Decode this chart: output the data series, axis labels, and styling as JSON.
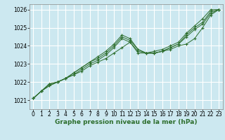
{
  "title": "Graphe pression niveau de la mer (hPa)",
  "bg_color": "#cce8f0",
  "grid_color": "#ffffff",
  "line_color": "#2d6e2d",
  "xlim": [
    -0.5,
    23.5
  ],
  "ylim": [
    1020.5,
    1026.3
  ],
  "yticks": [
    1021,
    1022,
    1023,
    1024,
    1025,
    1026
  ],
  "xticks": [
    0,
    1,
    2,
    3,
    4,
    5,
    6,
    7,
    8,
    9,
    10,
    11,
    12,
    13,
    14,
    15,
    16,
    17,
    18,
    19,
    20,
    21,
    22,
    23
  ],
  "series": [
    [
      1021.1,
      1021.5,
      1021.8,
      1022.0,
      1022.2,
      1022.4,
      1022.6,
      1022.9,
      1023.1,
      1023.3,
      1023.6,
      1023.9,
      1024.2,
      1023.6,
      1023.6,
      1023.6,
      1023.7,
      1023.8,
      1024.0,
      1024.1,
      1024.4,
      1025.0,
      1025.7,
      1026.0
    ],
    [
      1021.1,
      1021.5,
      1021.8,
      1022.0,
      1022.2,
      1022.4,
      1022.7,
      1023.0,
      1023.2,
      1023.5,
      1023.9,
      1024.4,
      1024.2,
      1023.7,
      1023.6,
      1023.6,
      1023.7,
      1023.9,
      1024.1,
      1024.5,
      1024.9,
      1025.2,
      1025.8,
      1026.0
    ],
    [
      1021.1,
      1021.5,
      1021.9,
      1022.0,
      1022.2,
      1022.5,
      1022.8,
      1023.1,
      1023.3,
      1023.6,
      1024.0,
      1024.5,
      1024.3,
      1023.8,
      1023.6,
      1023.6,
      1023.7,
      1023.9,
      1024.1,
      1024.6,
      1025.0,
      1025.3,
      1025.9,
      1026.0
    ],
    [
      1021.1,
      1021.5,
      1021.9,
      1022.0,
      1022.2,
      1022.5,
      1022.8,
      1023.1,
      1023.4,
      1023.7,
      1024.1,
      1024.6,
      1024.4,
      1023.8,
      1023.6,
      1023.7,
      1023.8,
      1024.0,
      1024.2,
      1024.7,
      1025.1,
      1025.5,
      1026.0,
      1026.0
    ]
  ],
  "xlabel_fontsize": 6.5,
  "tick_fontsize": 5.5
}
